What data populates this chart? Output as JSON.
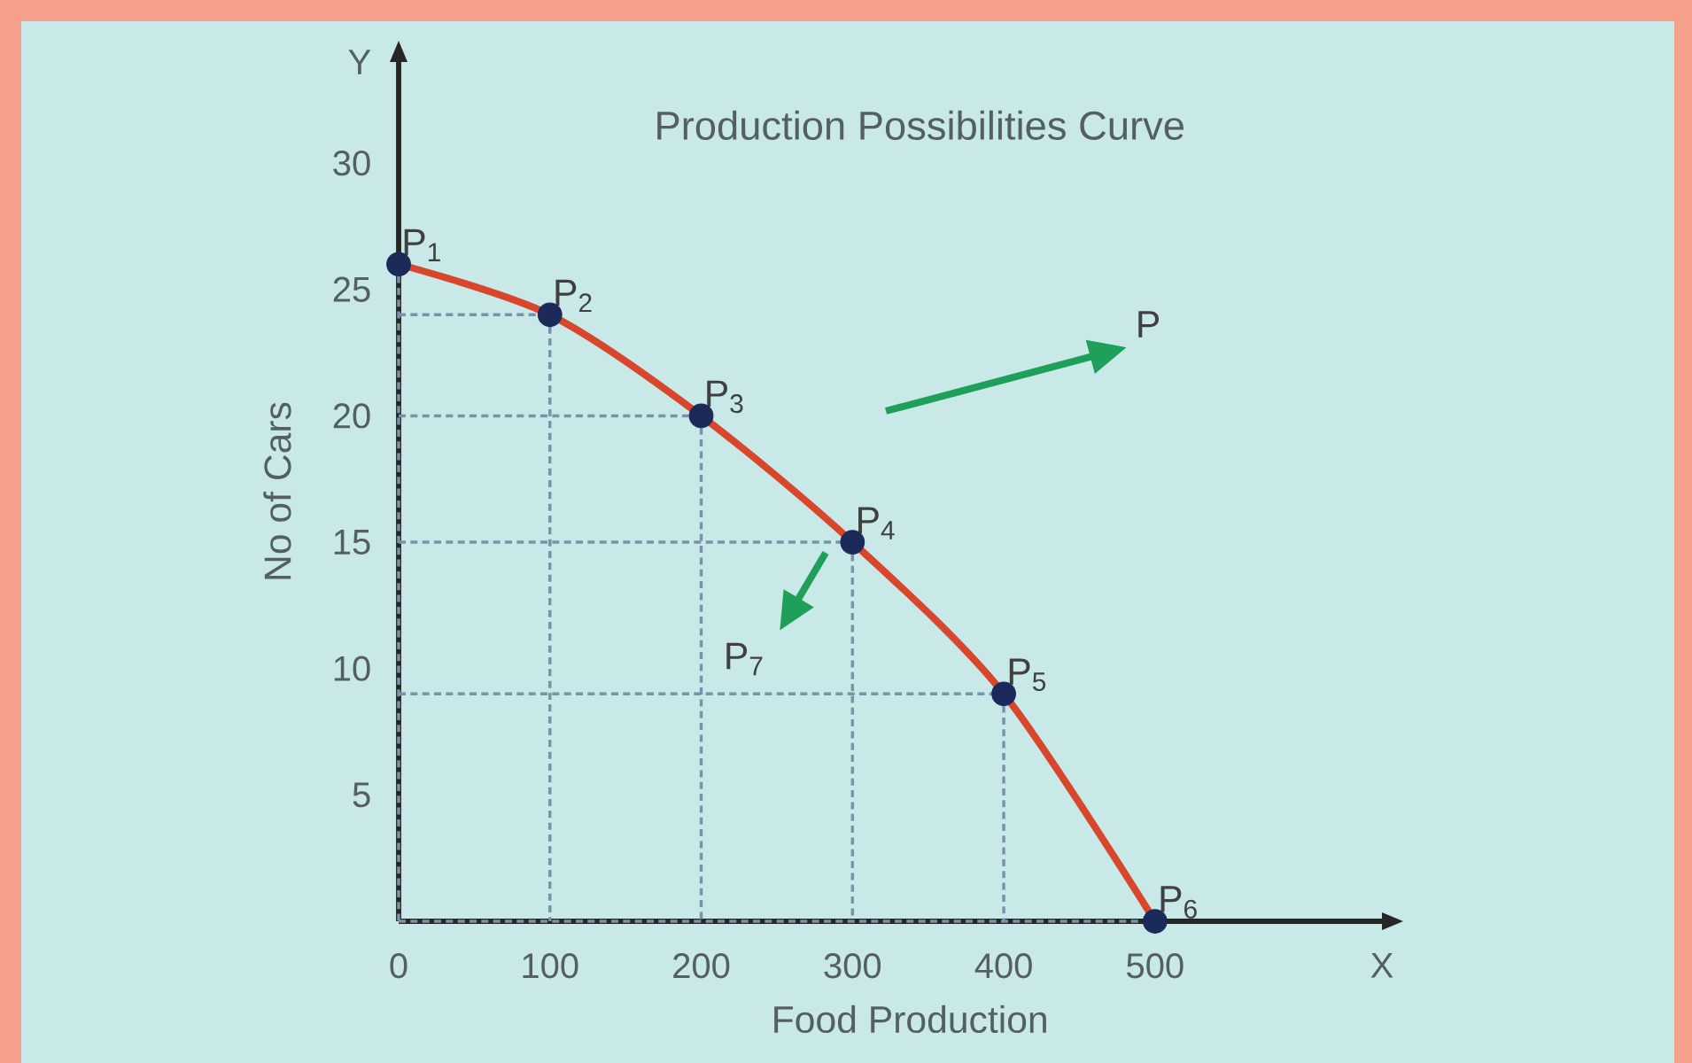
{
  "chart_data": {
    "type": "line",
    "title": "Production Possibilities Curve",
    "xlabel": "Food Production",
    "ylabel": "No of Cars",
    "x": [
      0,
      100,
      200,
      300,
      400,
      500
    ],
    "series": [
      {
        "color": "#d8472c",
        "values": [
          26,
          24,
          20,
          15,
          9,
          0
        ]
      }
    ],
    "marker": "circle",
    "xlim": [
      0,
      650
    ],
    "ylim": [
      0,
      34
    ],
    "xticks": [
      0,
      100,
      200,
      300,
      400,
      500
    ],
    "yticks": [
      5,
      10,
      15,
      20,
      25,
      30
    ],
    "annotations": [
      {
        "text": "P$_{1}$",
        "x": 0,
        "y": 26
      },
      {
        "text": "P$_{2}$",
        "x": 100,
        "y": 24
      },
      {
        "text": "P$_{3}$",
        "x": 200,
        "y": 20
      },
      {
        "text": "P$_{4}$",
        "x": 300,
        "y": 15
      },
      {
        "text": "P$_{5}$",
        "x": 400,
        "y": 9
      },
      {
        "text": "P$_{6}$",
        "x": 500,
        "y": 0
      },
      "P",
      "P$_{7}$",
      "X",
      "Y"
    ]
  }
}
